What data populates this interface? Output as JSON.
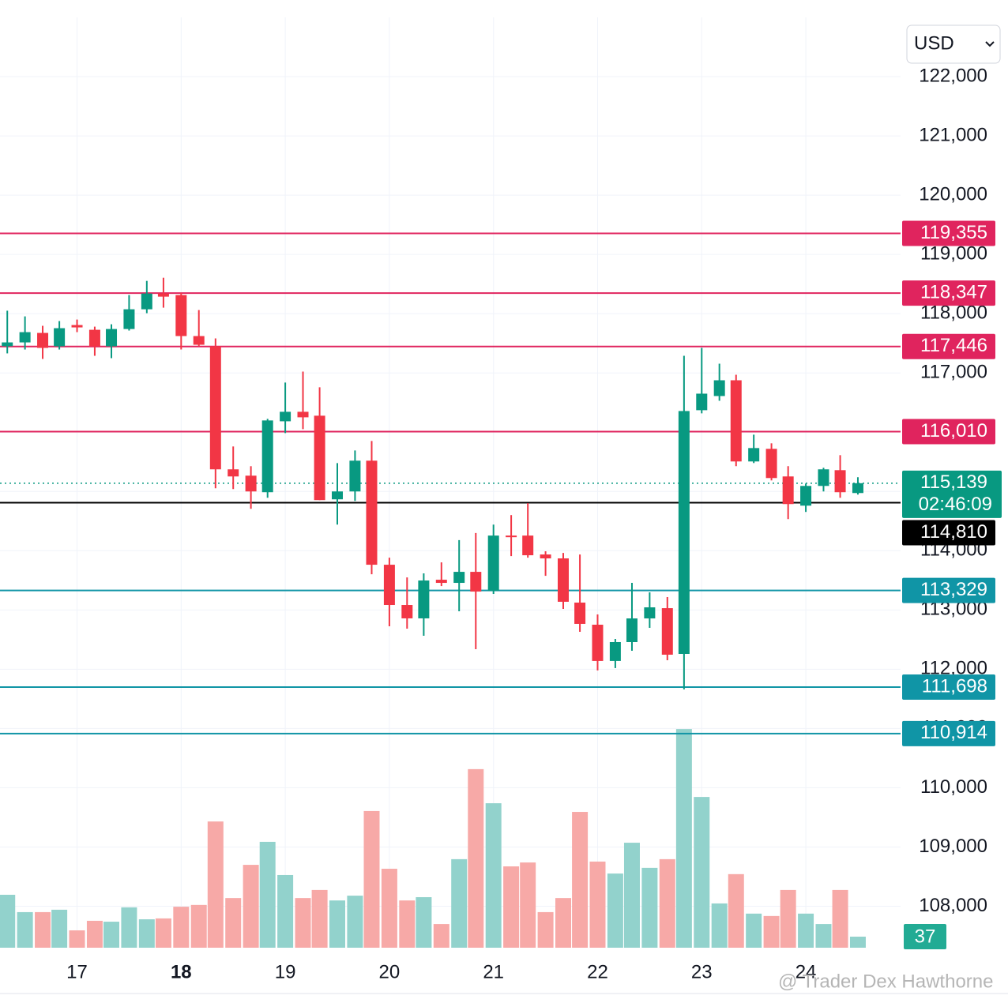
{
  "currency": "USD",
  "watermark": "@ Trader Dex Hawthorne",
  "chart_data": {
    "type": "candlestick",
    "x": [
      16.33,
      16.5,
      16.67,
      16.83,
      17,
      17.17,
      17.33,
      17.5,
      17.67,
      17.83,
      18,
      18.17,
      18.33,
      18.5,
      18.67,
      18.83,
      19,
      19.17,
      19.33,
      19.5,
      19.67,
      19.83,
      20,
      20.17,
      20.33,
      20.5,
      20.67,
      20.83,
      21,
      21.17,
      21.33,
      21.5,
      21.67,
      21.83,
      22,
      22.17,
      22.33,
      22.5,
      22.67,
      22.83,
      23,
      23.17,
      23.33,
      23.5,
      23.67,
      23.83,
      24,
      24.17,
      24.33,
      24.5
    ],
    "open": [
      117450,
      117515,
      117675,
      117449,
      117808,
      117728,
      117449,
      117741,
      118074,
      118340,
      118314,
      117622,
      117449,
      115373,
      115266,
      114987,
      116184,
      116344,
      116278,
      114867,
      115000,
      115519,
      113763,
      113084,
      112858,
      113510,
      113457,
      113643,
      113323,
      114255,
      114255,
      113936,
      113870,
      113124,
      112751,
      112139,
      112458,
      112857,
      113030,
      112258,
      116371,
      116610,
      116876,
      115506,
      115719,
      115253,
      114760,
      115093,
      115359,
      114973
    ],
    "high": [
      118050,
      117954,
      117795,
      117875,
      117901,
      117781,
      117821,
      118314,
      118553,
      118606,
      118354,
      118061,
      117582,
      115759,
      115426,
      116224,
      116837,
      117023,
      116757,
      115479,
      115692,
      115852,
      113883,
      113549,
      113617,
      113803,
      114178,
      114298,
      114441,
      114601,
      114801,
      113990,
      113963,
      113936,
      112924,
      112511,
      113457,
      113297,
      113217,
      117289,
      117422,
      117156,
      116970,
      115958,
      115812,
      115426,
      115133,
      115399,
      115612,
      115240
    ],
    "low": [
      117330,
      117395,
      117236,
      117395,
      117688,
      117289,
      117249,
      117715,
      118008,
      118101,
      117395,
      117449,
      115053,
      115040,
      114707,
      114893,
      115985,
      116051,
      114854,
      114441,
      114840,
      113603,
      112724,
      112684,
      112565,
      113403,
      112977,
      112338,
      113270,
      113909,
      113883,
      113576,
      113017,
      112631,
      111979,
      112019,
      112312,
      112698,
      112152,
      111660,
      116318,
      116530,
      115426,
      115479,
      115186,
      114534,
      114654,
      115000,
      114893,
      114947
    ],
    "close": [
      117515,
      117688,
      117422,
      117755,
      117768,
      117449,
      117741,
      118074,
      118340,
      118287,
      117622,
      117475,
      115373,
      115253,
      115000,
      116198,
      116344,
      116251,
      114854,
      115000,
      115519,
      113763,
      113084,
      112858,
      113497,
      113457,
      113643,
      113310,
      114255,
      114228,
      113923,
      113870,
      113138,
      112765,
      112139,
      112458,
      112857,
      113044,
      112245,
      116357,
      116650,
      116876,
      115506,
      115732,
      115226,
      114787,
      115093,
      115373,
      114987,
      115139
    ],
    "volume": [
      177,
      119,
      119,
      127,
      58,
      90,
      87,
      135,
      95,
      98,
      137,
      143,
      422,
      166,
      277,
      354,
      243,
      166,
      193,
      158,
      174,
      457,
      264,
      158,
      169,
      79,
      296,
      597,
      483,
      272,
      285,
      119,
      166,
      454,
      288,
      248,
      351,
      267,
      296,
      731,
      504,
      148,
      246,
      114,
      106,
      193,
      114,
      79,
      193,
      37
    ],
    "up_color": "#089981",
    "down_color": "#f23645",
    "volume_up_color": "#92d2cc",
    "volume_down_color": "#f7a9a7",
    "volume_label_color": "#22ab94",
    "volume_lim": [
      0,
      800
    ],
    "xlim": [
      16.26,
      24.91
    ],
    "xticks": [
      17,
      18,
      19,
      20,
      21,
      22,
      23,
      24
    ],
    "emphasized_xtick": 18,
    "ylim": [
      107300,
      123000
    ],
    "yticks": [
      {
        "value": 108000,
        "label": "108,000"
      },
      {
        "value": 109000,
        "label": "109,000"
      },
      {
        "value": 110000,
        "label": "110,000"
      },
      {
        "value": 111000,
        "label": "111,000"
      },
      {
        "value": 112000,
        "label": "112,000"
      },
      {
        "value": 113000,
        "label": "113,000"
      },
      {
        "value": 114000,
        "label": "114,000"
      },
      {
        "value": 115000,
        "label": "115,000"
      },
      {
        "value": 116000,
        "label": "116,000"
      },
      {
        "value": 117000,
        "label": "117,000"
      },
      {
        "value": 118000,
        "label": "118,000"
      },
      {
        "value": 119000,
        "label": "119,000"
      },
      {
        "value": 120000,
        "label": "120,000"
      },
      {
        "value": 121000,
        "label": "121,000"
      },
      {
        "value": 122000,
        "label": "122,000"
      }
    ],
    "grid": true,
    "price_lines": [
      {
        "value": 119355,
        "label": "119,355",
        "color": "#e0245e"
      },
      {
        "value": 118347,
        "label": "118,347",
        "color": "#e0245e"
      },
      {
        "value": 117446,
        "label": "117,446",
        "color": "#e0245e"
      },
      {
        "value": 116010,
        "label": "116,010",
        "color": "#e0245e"
      },
      {
        "value": 113329,
        "label": "113,329",
        "color": "#1095a6"
      },
      {
        "value": 111698,
        "label": "111,698",
        "color": "#1095a6"
      },
      {
        "value": 110914,
        "label": "110,914",
        "color": "#1095a6"
      }
    ],
    "reference_line": {
      "value": 114810,
      "label": "114,810",
      "color": "#000000"
    },
    "current_price": {
      "value": 115139,
      "label": "115,139",
      "countdown": "02:46:09",
      "color": "#089981"
    }
  }
}
